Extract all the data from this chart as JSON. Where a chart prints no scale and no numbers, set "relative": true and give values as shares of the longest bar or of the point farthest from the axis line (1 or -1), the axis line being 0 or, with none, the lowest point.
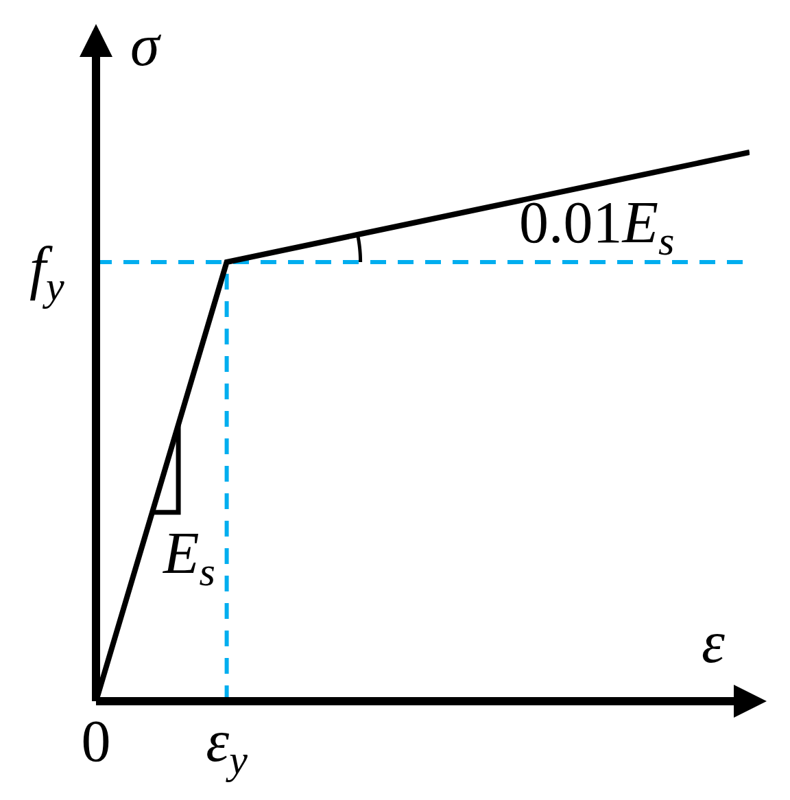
{
  "chart_data": {
    "type": "line",
    "xlabel": "ε",
    "ylabel": "σ",
    "relative": true,
    "categories": [
      "0",
      "ε$_{y}$",
      null,
      null,
      null,
      null
    ],
    "series": [
      {
        "color": "#000000",
        "values": [
          0,
          0.8,
          0.85,
          0.9,
          0.95,
          1
        ]
      }
    ],
    "ref_lines": [
      {
        "axis": "y",
        "value": 0.8,
        "label": "f$_{y}$",
        "color": "#00aeef",
        "line_style": "dashed"
      },
      {
        "axis": "x",
        "value": "ε$_{y}$",
        "color": "#00aeef",
        "line_style": "dashed"
      }
    ],
    "annotations": [
      "E$_{s}$",
      "0.01E$_{s}$"
    ]
  }
}
